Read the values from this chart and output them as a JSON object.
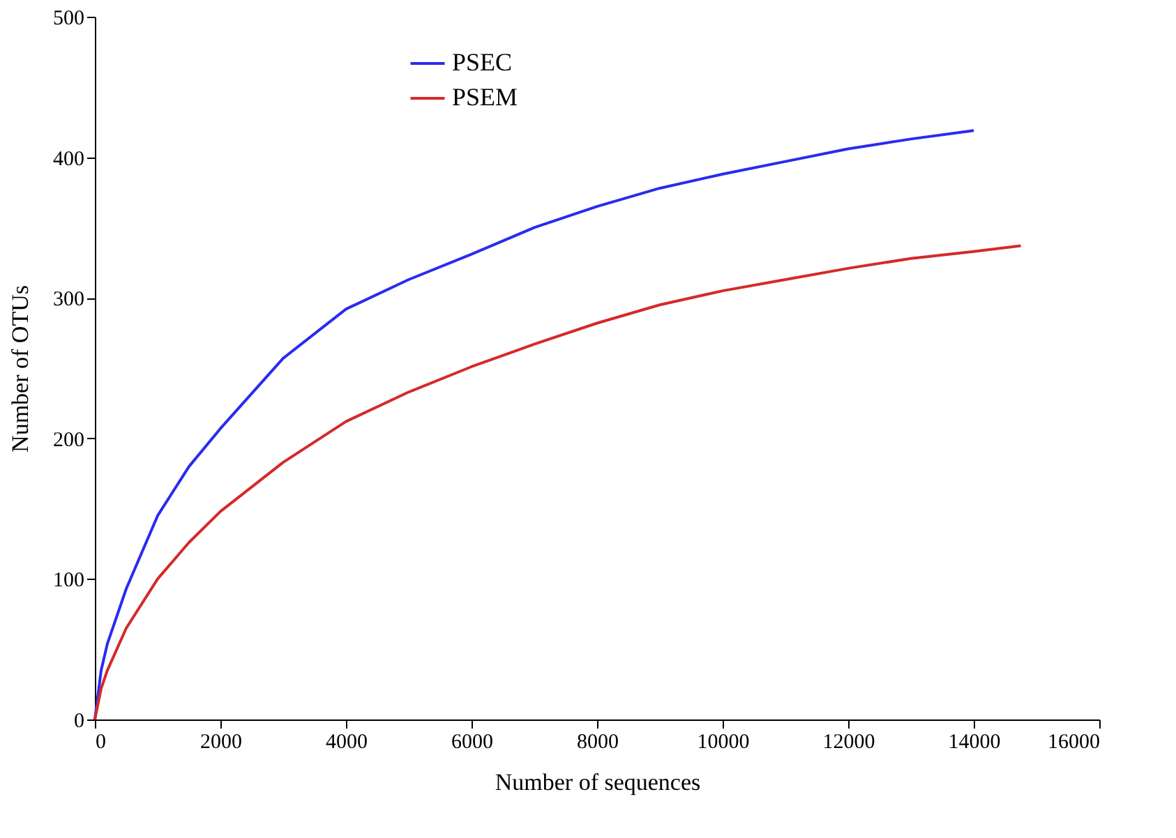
{
  "chart_data": {
    "type": "line",
    "xlabel": "Number of sequences",
    "ylabel": "Number of OTUs",
    "xlim": [
      0,
      16000
    ],
    "xticks": [
      0,
      2000,
      4000,
      6000,
      8000,
      10000,
      12000,
      14000,
      16000
    ],
    "ylim": [
      0,
      500
    ],
    "yticks": [
      0,
      100,
      200,
      300,
      400,
      500
    ],
    "grid": false,
    "legend": "top",
    "line_style": "solid",
    "marker": "none",
    "series": [
      {
        "name": "PSEC",
        "color": "#2b2bf0",
        "x": [
          0,
          100,
          200,
          500,
          1000,
          1500,
          2000,
          3000,
          4000,
          5000,
          6000,
          7000,
          8000,
          9000,
          10000,
          11000,
          12000,
          13000,
          14000
        ],
        "values": [
          0,
          35,
          54,
          93,
          145,
          180,
          207,
          257,
          292,
          313,
          331,
          350,
          365,
          378,
          388,
          397,
          406,
          413,
          419
        ]
      },
      {
        "name": "PSEM",
        "color": "#d42a2a",
        "x": [
          0,
          100,
          200,
          500,
          1000,
          1500,
          2000,
          3000,
          4000,
          5000,
          6000,
          7000,
          8000,
          9000,
          10000,
          11000,
          12000,
          13000,
          14000,
          14750
        ],
        "values": [
          0,
          22,
          35,
          65,
          100,
          126,
          148,
          183,
          212,
          233,
          251,
          267,
          282,
          295,
          305,
          313,
          321,
          328,
          333,
          337
        ]
      }
    ]
  }
}
